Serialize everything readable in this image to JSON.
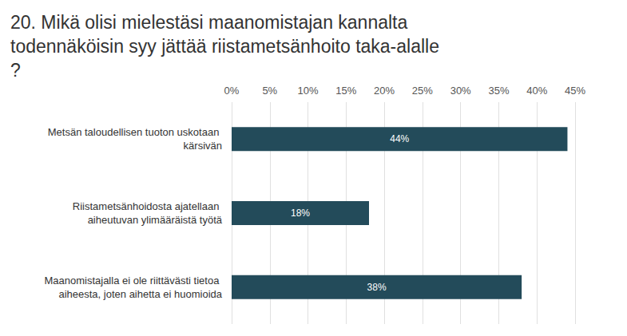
{
  "chart_data": {
    "type": "bar",
    "title": "20. Mikä olisi mielestäsi maanomistajan kannalta todennäköisin syy jättää riistametsänhoito taka-alalle?",
    "orientation": "horizontal",
    "categories": [
      "Metsän taloudellisen tuoton uskotaan kärsivän",
      "Riistametsänhoidosta ajatellaan aiheutuvan ylimääräistä työtä",
      "Maanomistajalla ei ole riittävästi tietoa aiheesta, joten aihetta ei huomioida"
    ],
    "values": [
      44,
      18,
      38
    ],
    "value_labels": [
      "44%",
      "18%",
      "38%"
    ],
    "data_labels": true,
    "color": "#234b5a",
    "xlim": [
      0,
      45
    ],
    "xticks": [
      {
        "value": 0,
        "label": "0%"
      },
      {
        "value": 5,
        "label": "5%"
      },
      {
        "value": 10,
        "label": "10%"
      },
      {
        "value": 15,
        "label": "15%"
      },
      {
        "value": 20,
        "label": "20%"
      },
      {
        "value": 25,
        "label": "25%"
      },
      {
        "value": 30,
        "label": "30%"
      },
      {
        "value": 35,
        "label": "35%"
      },
      {
        "value": 40,
        "label": "40%"
      },
      {
        "value": 45,
        "label": "45%"
      }
    ],
    "grid": true
  }
}
